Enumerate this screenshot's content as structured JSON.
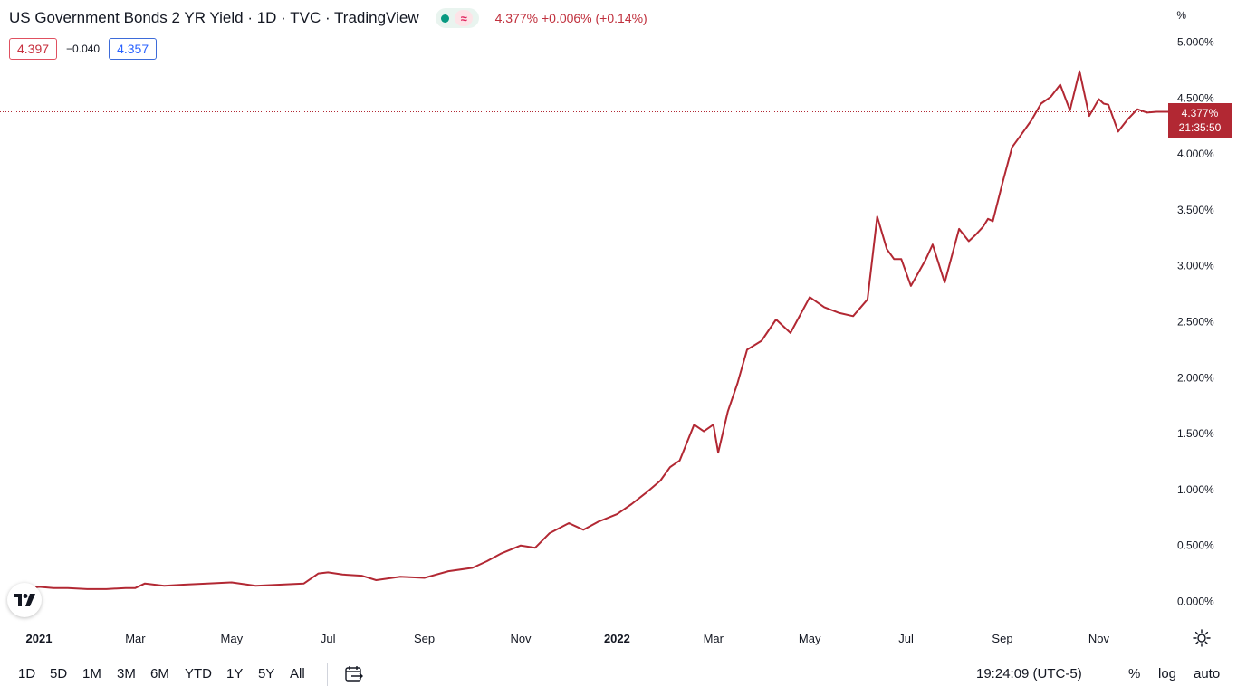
{
  "header": {
    "title": "US Government Bonds 2 YR Yield · 1D · TVC · TradingView",
    "status_wave": "≈",
    "quote": "4.377%  +0.006% (+0.14%)",
    "bid": "4.397",
    "spread": "−0.040",
    "ask": "4.357"
  },
  "last_price": {
    "value": "4.377%",
    "countdown": "21:35:50"
  },
  "bottom": {
    "ranges": [
      "1D",
      "5D",
      "1M",
      "3M",
      "6M",
      "YTD",
      "1Y",
      "5Y",
      "All"
    ],
    "clock": "19:24:09 (UTC-5)",
    "percent_label": "%",
    "log_label": "log",
    "auto_label": "auto"
  },
  "colors": {
    "line": "#b22833",
    "label_bg": "#b22833",
    "bid": "#c7303e",
    "ask": "#2962ff"
  },
  "chart_data": {
    "type": "line",
    "unit_label": "%",
    "ylim": [
      0.0,
      5.0
    ],
    "y_ticks": [
      "5.000%",
      "4.500%",
      "4.000%",
      "3.500%",
      "3.000%",
      "2.500%",
      "2.000%",
      "1.500%",
      "1.000%",
      "0.500%",
      "0.000%"
    ],
    "y_tick_values": [
      5.0,
      4.5,
      4.0,
      3.5,
      3.0,
      2.5,
      2.0,
      1.5,
      1.0,
      0.5,
      0.0
    ],
    "x_ticks": [
      "2021",
      "Mar",
      "May",
      "Jul",
      "Sep",
      "Nov",
      "2022",
      "Mar",
      "May",
      "Jul",
      "Sep",
      "Nov"
    ],
    "x_tick_months": [
      0,
      2,
      4,
      6,
      8,
      10,
      12,
      14,
      16,
      18,
      20,
      22
    ],
    "grid": false,
    "last_value": 4.377,
    "series": [
      {
        "x": [
          -0.5,
          -0.25,
          0.0,
          0.3,
          0.6,
          1.0,
          1.4,
          1.8,
          2.0,
          2.2,
          2.6,
          3.0,
          3.5,
          4.0,
          4.5,
          5.0,
          5.5,
          5.8,
          6.0,
          6.3,
          6.7,
          7.0,
          7.5,
          8.0,
          8.5,
          9.0,
          9.3,
          9.6,
          10.0,
          10.3,
          10.6,
          11.0,
          11.3,
          11.6,
          12.0,
          12.3,
          12.6,
          12.9,
          13.1,
          13.3,
          13.6,
          13.8,
          14.0,
          14.1,
          14.3,
          14.5,
          14.7,
          15.0,
          15.3,
          15.6,
          16.0,
          16.3,
          16.6,
          16.9,
          17.2,
          17.4,
          17.6,
          17.75,
          17.9,
          18.1,
          18.4,
          18.55,
          18.8,
          19.1,
          19.3,
          19.45,
          19.6,
          19.7,
          19.8,
          20.0,
          20.2,
          20.4,
          20.6,
          20.8,
          21.0,
          21.2,
          21.4,
          21.6,
          21.8,
          22.0,
          22.1,
          22.2,
          22.4,
          22.6,
          22.8,
          23.0,
          23.2,
          23.35,
          23.5,
          23.6
        ],
        "values": [
          0.13,
          0.11,
          0.13,
          0.12,
          0.12,
          0.11,
          0.11,
          0.12,
          0.12,
          0.16,
          0.14,
          0.15,
          0.16,
          0.17,
          0.14,
          0.15,
          0.16,
          0.25,
          0.26,
          0.24,
          0.23,
          0.19,
          0.22,
          0.21,
          0.27,
          0.3,
          0.36,
          0.43,
          0.5,
          0.48,
          0.61,
          0.7,
          0.64,
          0.71,
          0.78,
          0.87,
          0.97,
          1.08,
          1.2,
          1.26,
          1.58,
          1.52,
          1.58,
          1.33,
          1.7,
          1.95,
          2.25,
          2.33,
          2.52,
          2.4,
          2.72,
          2.63,
          2.58,
          2.55,
          2.7,
          3.44,
          3.15,
          3.06,
          3.06,
          2.82,
          3.05,
          3.19,
          2.85,
          3.33,
          3.22,
          3.28,
          3.35,
          3.42,
          3.4,
          3.74,
          4.06,
          4.18,
          4.3,
          4.45,
          4.51,
          4.62,
          4.39,
          4.74,
          4.34,
          4.49,
          4.45,
          4.44,
          4.2,
          4.31,
          4.4,
          4.37,
          4.377,
          4.377,
          4.377,
          4.377
        ]
      }
    ]
  }
}
